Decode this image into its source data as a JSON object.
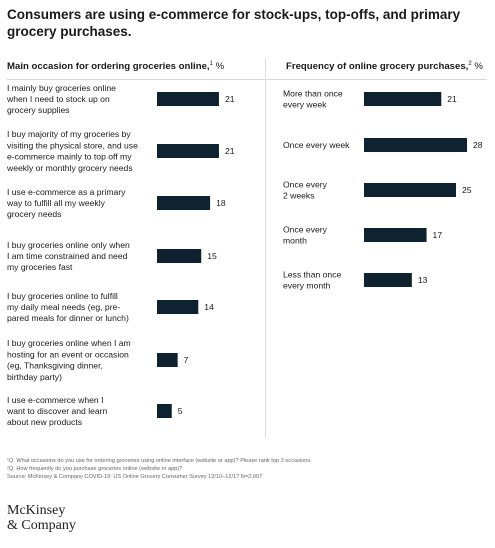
{
  "title": "Consumers are using e-commerce for stock-ups, top-offs, and primary grocery purchases.",
  "left_panel": {
    "title": "Main occasion for ordering groceries online,",
    "sup": "1",
    "unit": " %"
  },
  "right_panel": {
    "title": "Frequency of online grocery purchases,",
    "sup": "2",
    "unit": " %"
  },
  "chart_data": [
    {
      "type": "bar",
      "orientation": "horizontal",
      "title": "Main occasion for ordering groceries online, %",
      "categories": [
        [
          "I mainly buy groceries online",
          "when I need to stock up on",
          "grocery supplies"
        ],
        [
          "I buy majority of my groceries by",
          "visiting the physical store, and use",
          "e-commerce mainly to top off my",
          "weekly or monthly grocery needs"
        ],
        [
          "I use e-commerce as a primary",
          "way to fulfill all my weekly",
          "grocery needs"
        ],
        [
          "I buy groceries online only when",
          "I am time constrained and need",
          "my groceries fast"
        ],
        [
          "I buy groceries online to fulfill",
          "my daily meal needs (eg, pre-",
          "pared meals for dinner or lunch)"
        ],
        [
          "I buy groceries online when I am",
          "hosting for an event or occasion",
          "(eg, Thanksgiving dinner,",
          "birthday party)"
        ],
        [
          "I use e-commerce when I",
          "want to discover and learn",
          "about new products"
        ]
      ],
      "values": [
        21,
        21,
        18,
        15,
        14,
        7,
        5
      ],
      "value_labels": [
        "21",
        "21",
        "18",
        "15",
        "14",
        "7",
        "5"
      ],
      "bar_color": "#0f2230"
    },
    {
      "type": "bar",
      "orientation": "horizontal",
      "title": "Frequency of online grocery purchases, %",
      "categories": [
        [
          "More than once",
          "every week"
        ],
        [
          "Once every week"
        ],
        [
          "Once every",
          "2 weeks"
        ],
        [
          "Once every",
          "month"
        ],
        [
          "Less than once",
          "every month"
        ]
      ],
      "values": [
        21,
        28,
        25,
        17,
        13
      ],
      "value_labels": [
        "21",
        "28",
        "25",
        "17",
        "13"
      ],
      "bar_color": "#0f2230"
    }
  ],
  "footnotes": [
    "¹Q: What occasions do you use for ordering groceries using online interface (website or app)? Please rank top 3 occasions.",
    "²Q: How frequently do you purchase groceries online (website or app)?",
    "Source: McKinsey & Company COVID-19: US Online Grocery Consumer Survey 12/10–12/17 N=2,007"
  ],
  "logo": [
    "McKinsey",
    "& Company"
  ]
}
